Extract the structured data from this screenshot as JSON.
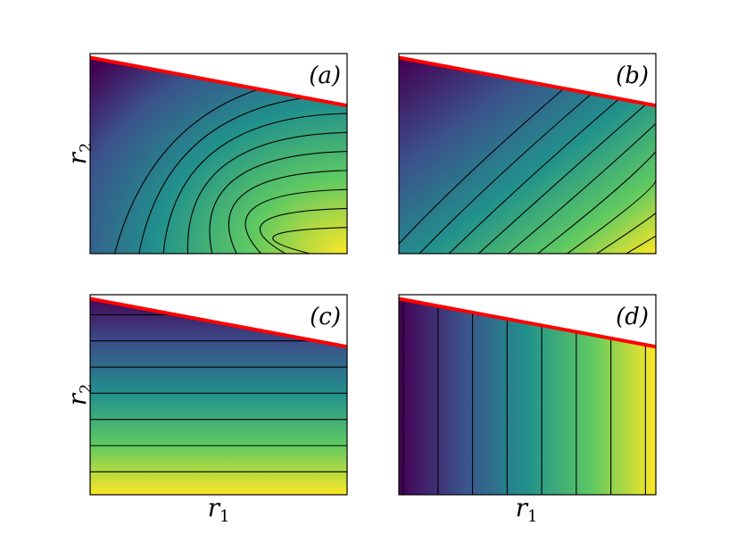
{
  "chart_data": [
    {
      "type": "heatmap",
      "panel_label": "(a)",
      "ylabel": "r",
      "ylabel_sub": "2",
      "xlabel": "",
      "xlabel_sub": "",
      "colormap": "viridis",
      "field": "radial",
      "contour_count": 9,
      "boundary": {
        "color": "#ff0000",
        "start": 0.98,
        "end": 0.74
      }
    },
    {
      "type": "heatmap",
      "panel_label": "(b)",
      "ylabel": "",
      "ylabel_sub": "",
      "xlabel": "",
      "xlabel_sub": "",
      "colormap": "viridis",
      "field": "diagonal",
      "contour_count": 9,
      "boundary": {
        "color": "#ff0000",
        "start": 0.98,
        "end": 0.74
      }
    },
    {
      "type": "heatmap",
      "panel_label": "(c)",
      "ylabel": "r",
      "ylabel_sub": "2",
      "xlabel": "r",
      "xlabel_sub": "1",
      "colormap": "viridis",
      "field": "vertical",
      "contour_count": 7,
      "boundary": {
        "color": "#ff0000",
        "start": 0.98,
        "end": 0.74
      }
    },
    {
      "type": "heatmap",
      "panel_label": "(d)",
      "ylabel": "",
      "ylabel_sub": "",
      "xlabel": "r",
      "xlabel_sub": "1",
      "colormap": "viridis",
      "field": "horizontal",
      "contour_count": 8,
      "boundary": {
        "color": "#ff0000",
        "start": 0.98,
        "end": 0.74
      }
    }
  ]
}
